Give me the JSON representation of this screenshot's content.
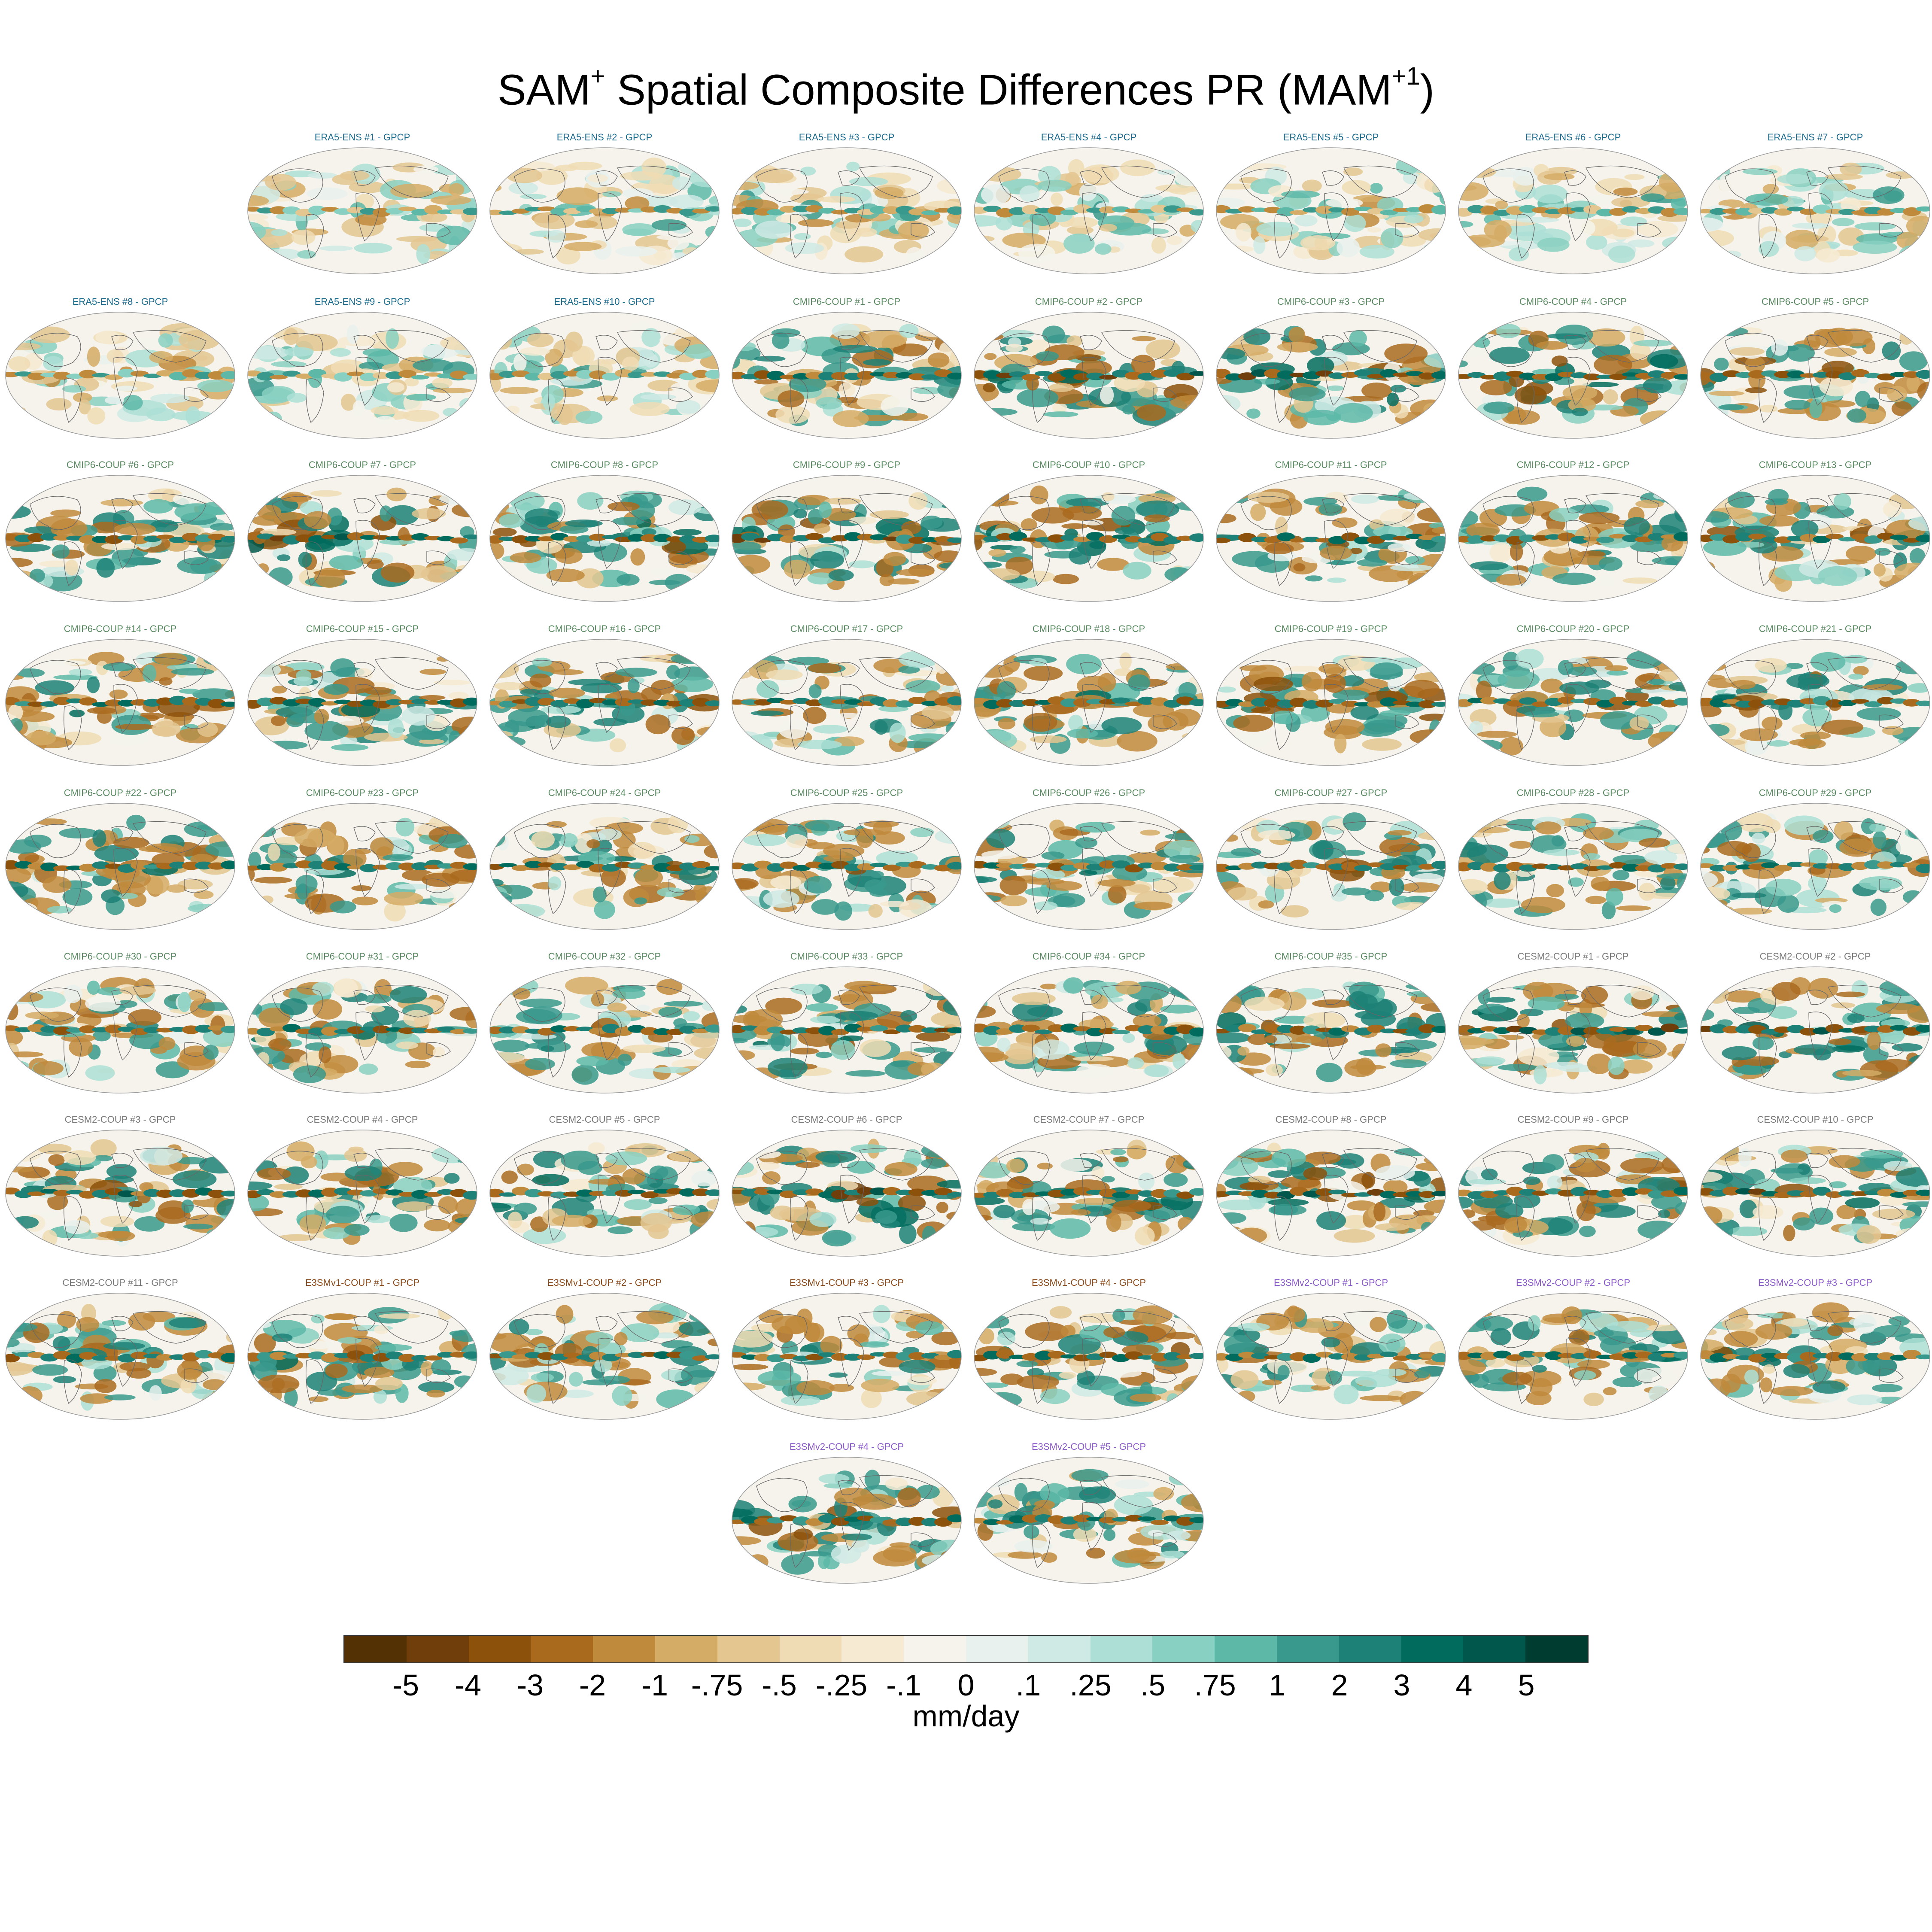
{
  "title": {
    "text": "SAM",
    "sup1": "+",
    "rest": " Spatial Composite Differences PR (MAM",
    "sup2": "+1",
    "end": ")"
  },
  "colors": {
    "ERA5-ENS": "#1a6a8c",
    "CMIP6-COUP": "#5a8a62",
    "CESM2-COUP": "#7a7a7a",
    "E3SMv1-COUP": "#8b4a1a",
    "E3SMv2-COUP": "#8a5ac8"
  },
  "panels": [
    {
      "label": "ERA5-ENS    #1 - GPCP",
      "group": "ERA5-ENS",
      "amp": 0.3
    },
    {
      "label": "ERA5-ENS    #2 - GPCP",
      "group": "ERA5-ENS",
      "amp": 0.3
    },
    {
      "label": "ERA5-ENS    #3 - GPCP",
      "group": "ERA5-ENS",
      "amp": 0.3
    },
    {
      "label": "ERA5-ENS    #4 - GPCP",
      "group": "ERA5-ENS",
      "amp": 0.3
    },
    {
      "label": "ERA5-ENS    #5 - GPCP",
      "group": "ERA5-ENS",
      "amp": 0.3
    },
    {
      "label": "ERA5-ENS    #6 - GPCP",
      "group": "ERA5-ENS",
      "amp": 0.3
    },
    {
      "label": "ERA5-ENS    #7 - GPCP",
      "group": "ERA5-ENS",
      "amp": 0.3
    },
    {
      "label": "ERA5-ENS    #8 - GPCP",
      "group": "ERA5-ENS",
      "amp": 0.3
    },
    {
      "label": "ERA5-ENS    #9 - GPCP",
      "group": "ERA5-ENS",
      "amp": 0.3
    },
    {
      "label": "ERA5-ENS    #10 - GPCP",
      "group": "ERA5-ENS",
      "amp": 0.3
    },
    {
      "label": "CMIP6-COUP  #1 - GPCP",
      "group": "CMIP6-COUP",
      "amp": 0.8
    },
    {
      "label": "CMIP6-COUP  #2 - GPCP",
      "group": "CMIP6-COUP",
      "amp": 1.0
    },
    {
      "label": "CMIP6-COUP  #3 - GPCP",
      "group": "CMIP6-COUP",
      "amp": 1.0
    },
    {
      "label": "CMIP6-COUP  #4 - GPCP",
      "group": "CMIP6-COUP",
      "amp": 0.9
    },
    {
      "label": "CMIP6-COUP  #5 - GPCP",
      "group": "CMIP6-COUP",
      "amp": 0.85
    },
    {
      "label": "CMIP6-COUP  #6 - GPCP",
      "group": "CMIP6-COUP",
      "amp": 0.8
    },
    {
      "label": "CMIP6-COUP  #7 - GPCP",
      "group": "CMIP6-COUP",
      "amp": 1.0
    },
    {
      "label": "CMIP6-COUP  #8 - GPCP",
      "group": "CMIP6-COUP",
      "amp": 0.85
    },
    {
      "label": "CMIP6-COUP  #9 - GPCP",
      "group": "CMIP6-COUP",
      "amp": 0.95
    },
    {
      "label": "CMIP6-COUP  #10 - GPCP",
      "group": "CMIP6-COUP",
      "amp": 0.9
    },
    {
      "label": "CMIP6-COUP  #11 - GPCP",
      "group": "CMIP6-COUP",
      "amp": 0.85
    },
    {
      "label": "CMIP6-COUP  #12 - GPCP",
      "group": "CMIP6-COUP",
      "amp": 0.75
    },
    {
      "label": "CMIP6-COUP  #13 - GPCP",
      "group": "CMIP6-COUP",
      "amp": 0.8
    },
    {
      "label": "CMIP6-COUP  #14 - GPCP",
      "group": "CMIP6-COUP",
      "amp": 0.8
    },
    {
      "label": "CMIP6-COUP  #15 - GPCP",
      "group": "CMIP6-COUP",
      "amp": 0.85
    },
    {
      "label": "CMIP6-COUP  #16 - GPCP",
      "group": "CMIP6-COUP",
      "amp": 0.8
    },
    {
      "label": "CMIP6-COUP  #17 - GPCP",
      "group": "CMIP6-COUP",
      "amp": 0.75
    },
    {
      "label": "CMIP6-COUP  #18 - GPCP",
      "group": "CMIP6-COUP",
      "amp": 0.8
    },
    {
      "label": "CMIP6-COUP  #19 - GPCP",
      "group": "CMIP6-COUP",
      "amp": 0.9
    },
    {
      "label": "CMIP6-COUP  #20 - GPCP",
      "group": "CMIP6-COUP",
      "amp": 0.8
    },
    {
      "label": "CMIP6-COUP  #21 - GPCP",
      "group": "CMIP6-COUP",
      "amp": 0.8
    },
    {
      "label": "CMIP6-COUP  #22 - GPCP",
      "group": "CMIP6-COUP",
      "amp": 0.8
    },
    {
      "label": "CMIP6-COUP  #23 - GPCP",
      "group": "CMIP6-COUP",
      "amp": 0.8
    },
    {
      "label": "CMIP6-COUP  #24 - GPCP",
      "group": "CMIP6-COUP",
      "amp": 0.8
    },
    {
      "label": "CMIP6-COUP  #25 - GPCP",
      "group": "CMIP6-COUP",
      "amp": 0.75
    },
    {
      "label": "CMIP6-COUP  #26 - GPCP",
      "group": "CMIP6-COUP",
      "amp": 0.8
    },
    {
      "label": "CMIP6-COUP  #27 - GPCP",
      "group": "CMIP6-COUP",
      "amp": 0.8
    },
    {
      "label": "CMIP6-COUP  #28 - GPCP",
      "group": "CMIP6-COUP",
      "amp": 0.8
    },
    {
      "label": "CMIP6-COUP  #29 - GPCP",
      "group": "CMIP6-COUP",
      "amp": 0.8
    },
    {
      "label": "CMIP6-COUP  #30 - GPCP",
      "group": "CMIP6-COUP",
      "amp": 0.7
    },
    {
      "label": "CMIP6-COUP  #31 - GPCP",
      "group": "CMIP6-COUP",
      "amp": 0.8
    },
    {
      "label": "CMIP6-COUP  #32 - GPCP",
      "group": "CMIP6-COUP",
      "amp": 0.75
    },
    {
      "label": "CMIP6-COUP  #33 - GPCP",
      "group": "CMIP6-COUP",
      "amp": 0.9
    },
    {
      "label": "CMIP6-COUP  #34 - GPCP",
      "group": "CMIP6-COUP",
      "amp": 0.8
    },
    {
      "label": "CMIP6-COUP  #35 - GPCP",
      "group": "CMIP6-COUP",
      "amp": 0.8
    },
    {
      "label": "CESM2-COUP  #1 - GPCP",
      "group": "CESM2-COUP",
      "amp": 1.0
    },
    {
      "label": "CESM2-COUP  #2 - GPCP",
      "group": "CESM2-COUP",
      "amp": 1.0
    },
    {
      "label": "CESM2-COUP  #3 - GPCP",
      "group": "CESM2-COUP",
      "amp": 0.9
    },
    {
      "label": "CESM2-COUP  #4 - GPCP",
      "group": "CESM2-COUP",
      "amp": 0.85
    },
    {
      "label": "CESM2-COUP  #5 - GPCP",
      "group": "CESM2-COUP",
      "amp": 0.85
    },
    {
      "label": "CESM2-COUP  #6 - GPCP",
      "group": "CESM2-COUP",
      "amp": 1.0
    },
    {
      "label": "CESM2-COUP  #7 - GPCP",
      "group": "CESM2-COUP",
      "amp": 0.9
    },
    {
      "label": "CESM2-COUP  #8 - GPCP",
      "group": "CESM2-COUP",
      "amp": 1.0
    },
    {
      "label": "CESM2-COUP  #9 - GPCP",
      "group": "CESM2-COUP",
      "amp": 0.9
    },
    {
      "label": "CESM2-COUP  #10 - GPCP",
      "group": "CESM2-COUP",
      "amp": 0.95
    },
    {
      "label": "CESM2-COUP  #11 - GPCP",
      "group": "CESM2-COUP",
      "amp": 0.8
    },
    {
      "label": "E3SMv1-COUP #1 - GPCP",
      "group": "E3SMv1-COUP",
      "amp": 0.8
    },
    {
      "label": "E3SMv1-COUP #2 - GPCP",
      "group": "E3SMv1-COUP",
      "amp": 0.8
    },
    {
      "label": "E3SMv1-COUP #3 - GPCP",
      "group": "E3SMv1-COUP",
      "amp": 0.75
    },
    {
      "label": "E3SMv1-COUP #4 - GPCP",
      "group": "E3SMv1-COUP",
      "amp": 0.85
    },
    {
      "label": "E3SMv2-COUP #1 - GPCP",
      "group": "E3SMv2-COUP",
      "amp": 0.75
    },
    {
      "label": "E3SMv2-COUP #2 - GPCP",
      "group": "E3SMv2-COUP",
      "amp": 0.8
    },
    {
      "label": "E3SMv2-COUP #3 - GPCP",
      "group": "E3SMv2-COUP",
      "amp": 0.8
    },
    {
      "label": "E3SMv2-COUP #4 - GPCP",
      "group": "E3SMv2-COUP",
      "amp": 0.85
    },
    {
      "label": "E3SMv2-COUP #5 - GPCP",
      "group": "E3SMv2-COUP",
      "amp": 0.85
    }
  ],
  "colorbar": {
    "colors": [
      "#543005",
      "#6f3e0a",
      "#8c510a",
      "#a96a1e",
      "#bf8a3c",
      "#d5ac65",
      "#e3c690",
      "#f0dcb4",
      "#f6ead2",
      "#f5f3ec",
      "#e9f1ef",
      "#cfe9e4",
      "#addfd6",
      "#88d0c1",
      "#5db8a8",
      "#38998c",
      "#1d8177",
      "#016c5e",
      "#01574b",
      "#003c30"
    ],
    "ticks": [
      "-5",
      "-4",
      "-3",
      "-2",
      "-1",
      "-.75",
      "-.5",
      "-.25",
      "-.1",
      "0",
      ".1",
      ".25",
      ".5",
      ".75",
      "1",
      "2",
      "3",
      "4",
      "5"
    ],
    "units": "mm/day"
  }
}
